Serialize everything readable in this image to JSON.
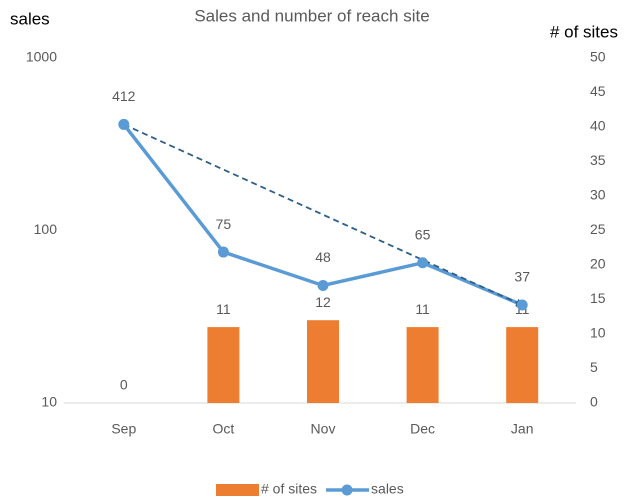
{
  "chart_data": {
    "type": "combo",
    "title": "Sales and number of reach site",
    "ylabel": "sales",
    "y2label": "# of sites",
    "categories": [
      "Sep",
      "Oct",
      "Nov",
      "Dec",
      "Jan"
    ],
    "series": [
      {
        "name": "# of sites",
        "type": "bar",
        "axis": "y2",
        "color": "#ed7d31",
        "values": [
          0,
          11,
          12,
          11,
          11
        ]
      },
      {
        "name": "sales",
        "type": "line",
        "axis": "y",
        "color": "#5b9bd5",
        "values": [
          412,
          75,
          48,
          65,
          37
        ]
      }
    ],
    "ylog": true,
    "ylim": [
      10,
      1000
    ],
    "yticks": [
      10,
      100,
      1000
    ],
    "y2lim": [
      0,
      50
    ],
    "y2ticks": [
      0,
      5,
      10,
      15,
      20,
      25,
      30,
      35,
      40,
      45,
      50
    ],
    "trendline": {
      "series": 1,
      "color": "#2e5f8a"
    },
    "grid": false,
    "legend": "bottom"
  }
}
